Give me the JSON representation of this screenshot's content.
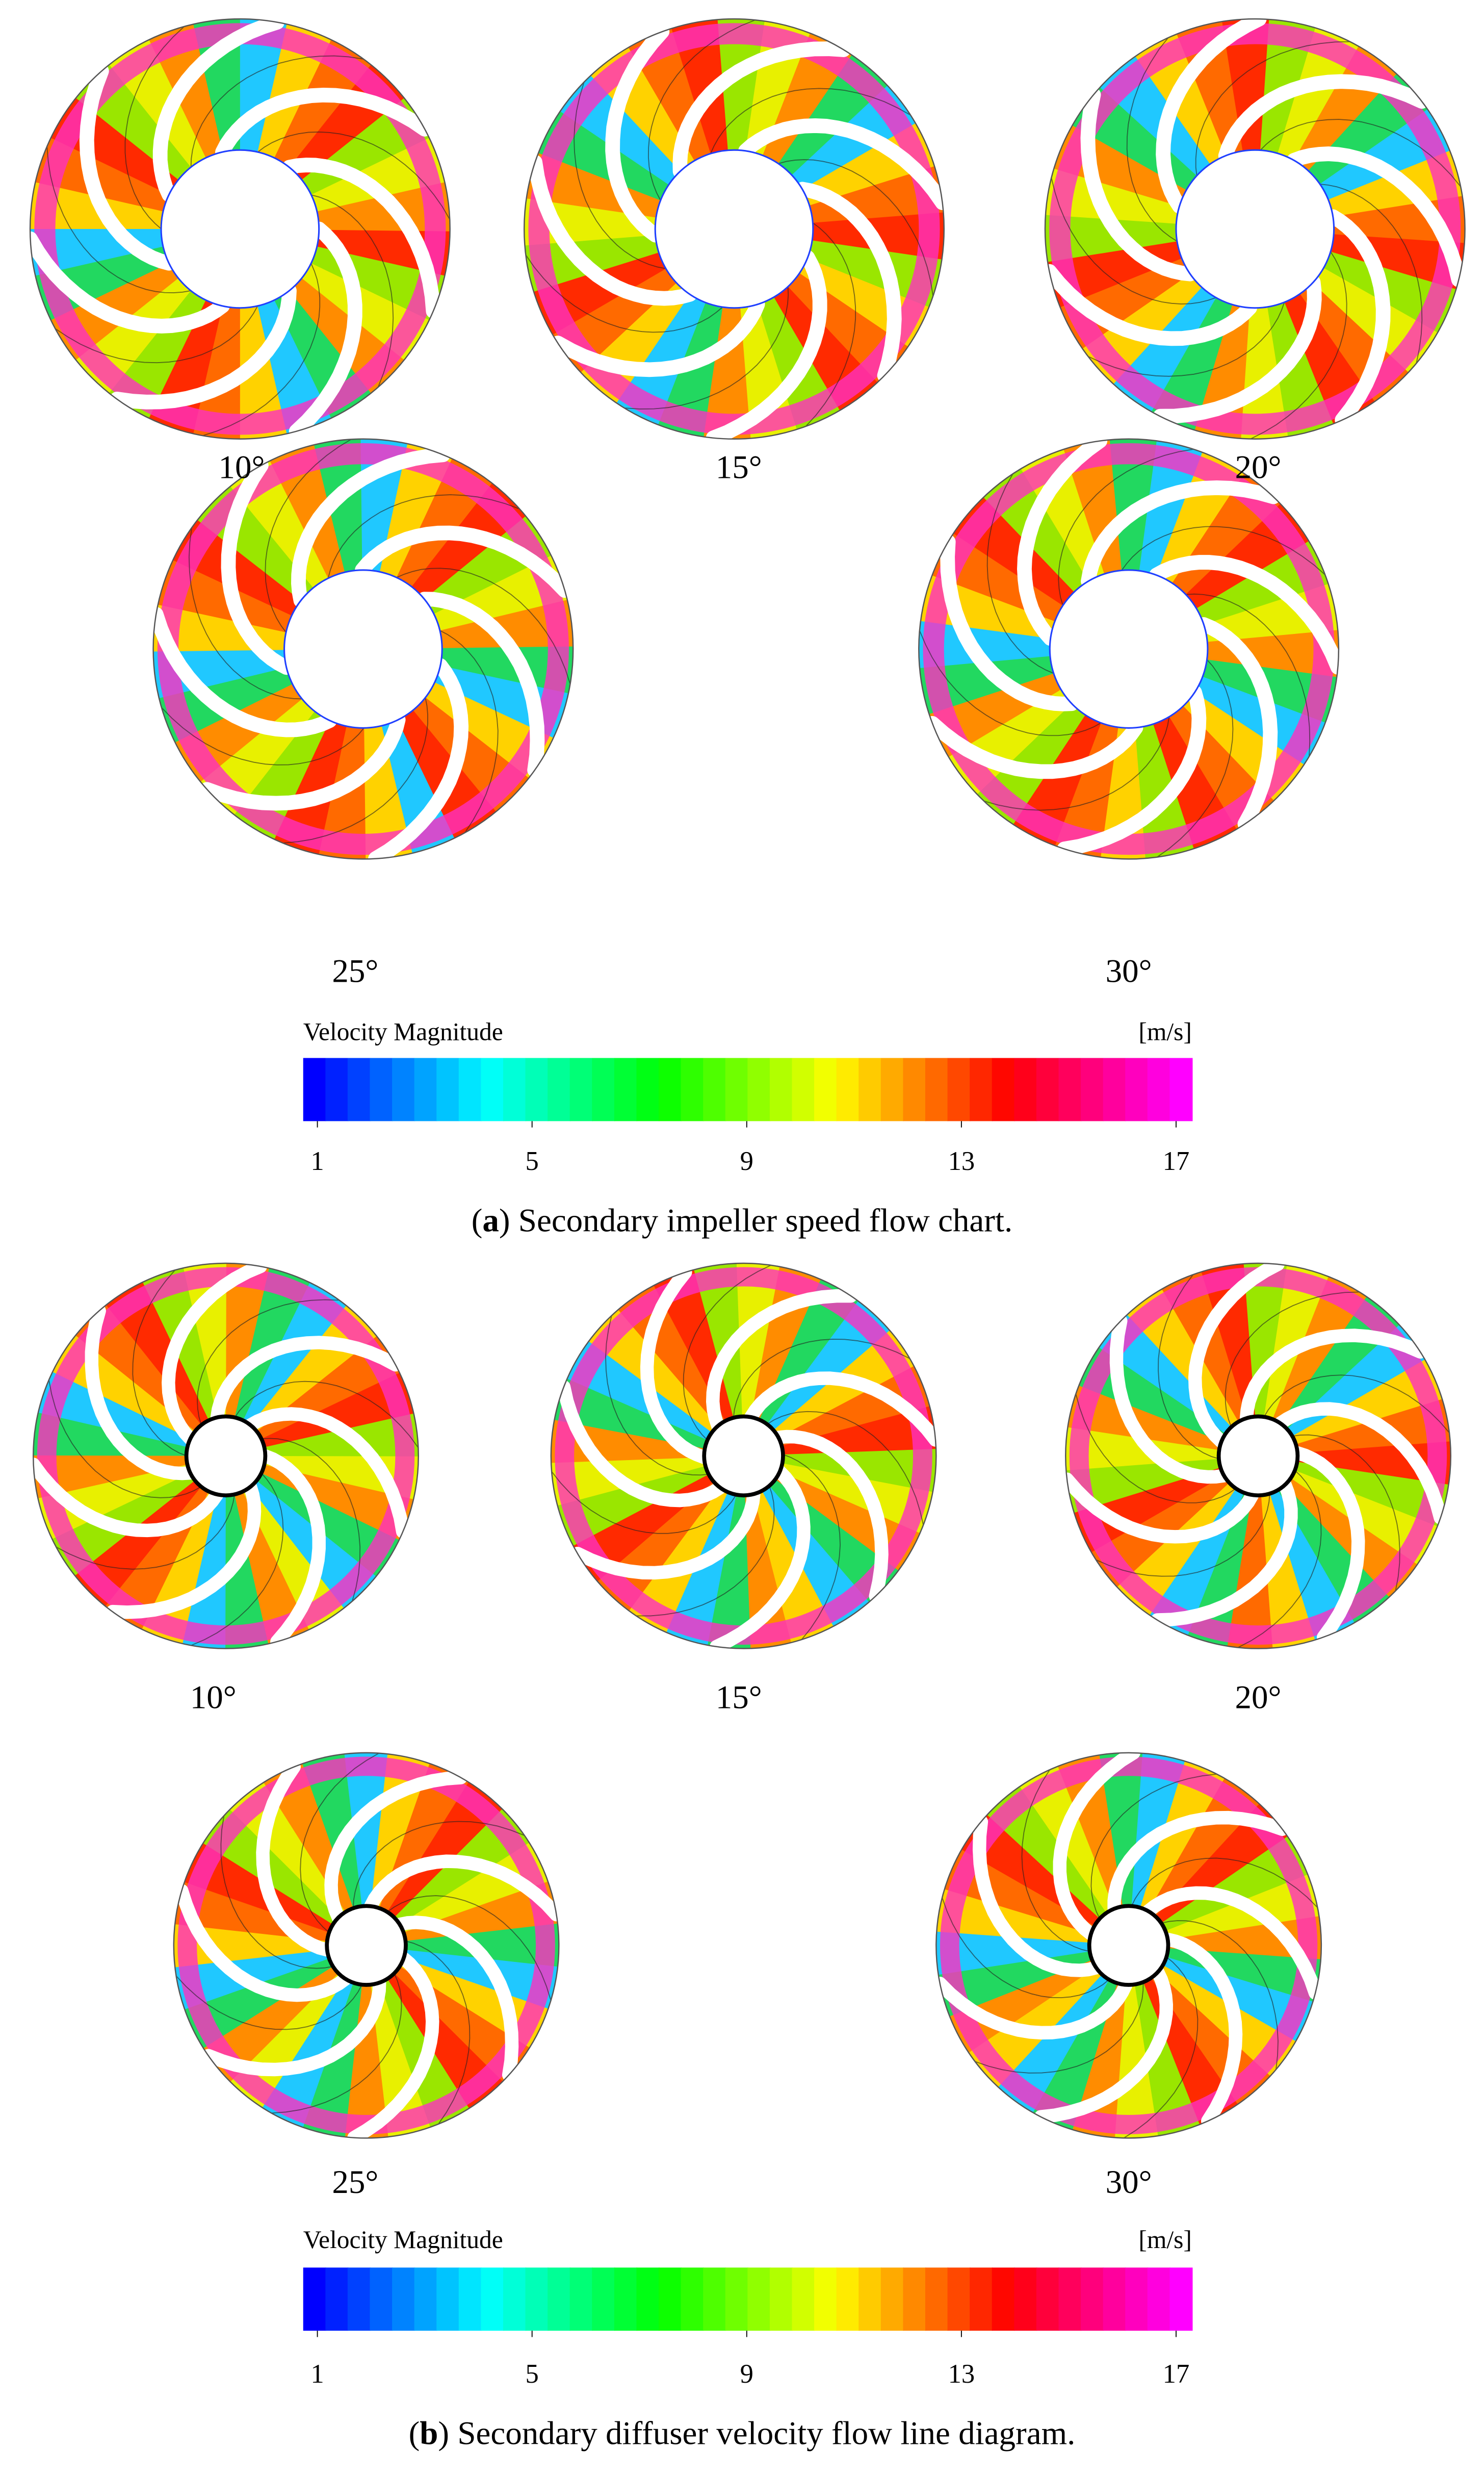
{
  "panels": {
    "a": {
      "angles": [
        "10°",
        "15°",
        "20°",
        "25°",
        "30°"
      ],
      "colorbar": {
        "title": "Velocity Magnitude",
        "unit": "[m/s]",
        "range": [
          1,
          17
        ],
        "ticks": [
          1,
          5,
          9,
          13,
          17
        ]
      },
      "caption": {
        "open": "(",
        "label": "a",
        "text": ") Secondary impeller speed flow chart."
      }
    },
    "b": {
      "angles": [
        "10°",
        "15°",
        "20°",
        "25°",
        "30°"
      ],
      "colorbar": {
        "title": "Velocity Magnitude",
        "unit": "[m/s]",
        "range": [
          1,
          17
        ],
        "ticks": [
          1,
          5,
          9,
          13,
          17
        ]
      },
      "caption": {
        "open": "(",
        "label": "b",
        "text": ") Secondary diffuser velocity flow line diagram."
      }
    }
  }
}
